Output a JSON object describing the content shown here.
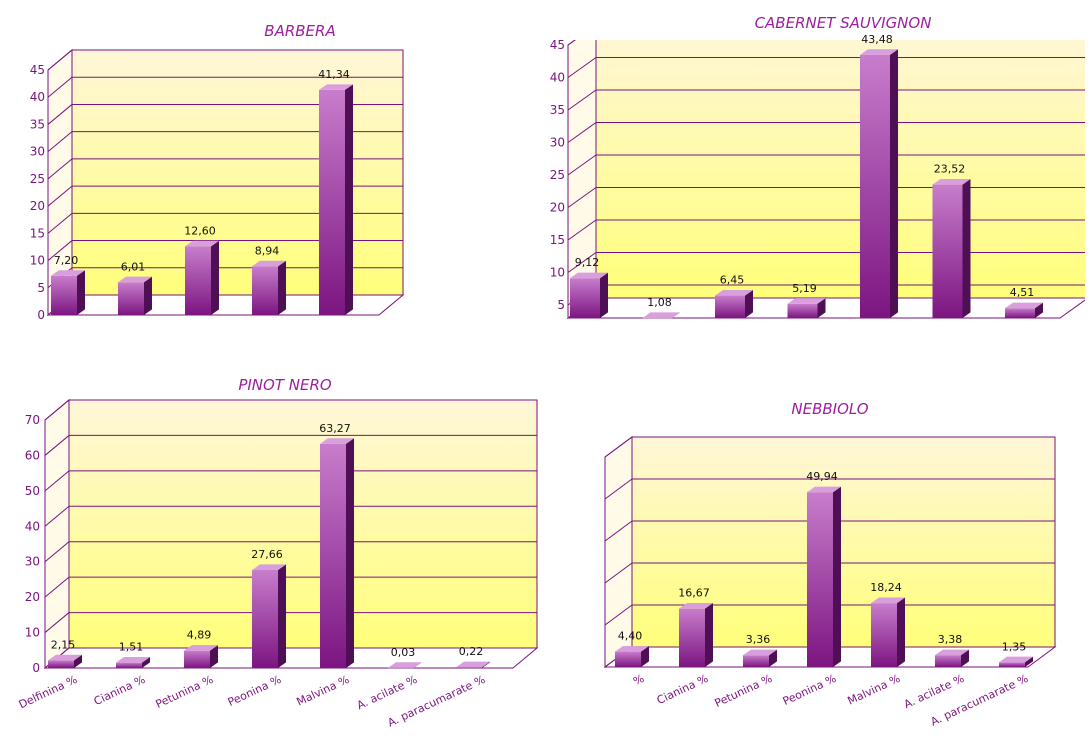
{
  "colors": {
    "bar_front_top": "#c77dcc",
    "bar_front_bottom": "#7c1581",
    "bar_side": "#4f0f55",
    "bar_top": "#d89fdc",
    "axis": "#7a127e",
    "grid": "#7a127e",
    "wall_top": "#fff6d8",
    "wall_bottom": "#ffff7a",
    "title": "#9c1fa0"
  },
  "chart_data": [
    {
      "type": "bar",
      "title": "BARBERA",
      "categories": [
        "",
        "",
        "",
        "",
        ""
      ],
      "values": [
        7.2,
        6.01,
        12.6,
        8.94,
        41.34
      ],
      "value_labels": [
        "7,20",
        "6,01",
        "12,60",
        "8,94",
        "41,34"
      ],
      "yticks": [
        "0",
        "5",
        "10",
        "15",
        "20",
        "25",
        "30",
        "35",
        "40",
        "45"
      ],
      "ylim": [
        0,
        45
      ],
      "grid": true,
      "view": "3d"
    },
    {
      "type": "bar",
      "title": "CABERNET SAUVIGNON",
      "categories": [
        "",
        "",
        "",
        "",
        "",
        "",
        ""
      ],
      "values": [
        9.12,
        1.08,
        6.45,
        5.19,
        43.48,
        23.52,
        4.51
      ],
      "value_labels": [
        "9,12",
        "1,08",
        "6,45",
        "5,19",
        "43,48",
        "23,52",
        "4,51"
      ],
      "yticks": [
        "5",
        "10",
        "15",
        "20",
        "25",
        "30",
        "35",
        "40",
        "45"
      ],
      "ylim": [
        3,
        45
      ],
      "grid": true,
      "view": "3d"
    },
    {
      "type": "bar",
      "title": "PINOT NERO",
      "categories": [
        "Delfinina %",
        "Cianina %",
        "Petunina %",
        "Peonina %",
        "Malvina %",
        "A. acilate %",
        "A. paracumarate %"
      ],
      "values": [
        2.15,
        1.51,
        4.89,
        27.66,
        63.27,
        0.03,
        0.22
      ],
      "value_labels": [
        "2,15",
        "1,51",
        "4,89",
        "27,66",
        "63,27",
        "0,03",
        "0,22"
      ],
      "yticks": [
        "0",
        "10",
        "20",
        "30",
        "40",
        "50",
        "60",
        "70"
      ],
      "ylim": [
        0,
        70
      ],
      "grid": true,
      "view": "3d"
    },
    {
      "type": "bar",
      "title": "NEBBIOLO",
      "categories": [
        "%",
        "Cianina %",
        "Petunina %",
        "Peonina %",
        "Malvina %",
        "A. acilate %",
        "A. paracumarate %"
      ],
      "values": [
        4.4,
        16.67,
        3.36,
        49.94,
        18.24,
        3.38,
        1.35
      ],
      "value_labels": [
        "4,40",
        "16,67",
        "3,36",
        "49,94",
        "18,24",
        "3,38",
        "1,35"
      ],
      "yticks": [],
      "ylim": [
        0,
        60
      ],
      "grid": true,
      "view": "3d"
    }
  ]
}
